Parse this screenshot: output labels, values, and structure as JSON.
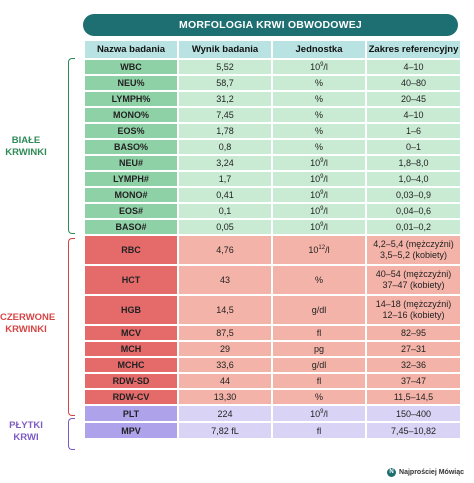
{
  "title": "MORFOLOGIA KRWI OBWODOWEJ",
  "headers": [
    "Nazwa badania",
    "Wynik badania",
    "Jednostka",
    "Zakres referencyjny"
  ],
  "groups": {
    "white": [
      "BIAŁE",
      "KRWINKI"
    ],
    "red": [
      "CZERWONE",
      "KRWINKI"
    ],
    "platelets": [
      "PŁYTKI",
      "KRWI"
    ]
  },
  "white_rows": [
    {
      "name": "WBC",
      "value": "5,52",
      "unit_base": "10",
      "unit_exp": "9",
      "unit_suffix": "/l",
      "range": "4–10"
    },
    {
      "name": "NEU%",
      "value": "58,7",
      "unit": "%",
      "range": "40–80"
    },
    {
      "name": "LYMPH%",
      "value": "31,2",
      "unit": "%",
      "range": "20–45"
    },
    {
      "name": "MONO%",
      "value": "7,45",
      "unit": "%",
      "range": "4–10"
    },
    {
      "name": "EOS%",
      "value": "1,78",
      "unit": "%",
      "range": "1–6"
    },
    {
      "name": "BASO%",
      "value": "0,8",
      "unit": "%",
      "range": "0–1"
    },
    {
      "name": "NEU#",
      "value": "3,24",
      "unit_base": "10",
      "unit_exp": "9",
      "unit_suffix": "/l",
      "range": "1,8–8,0"
    },
    {
      "name": "LYMPH#",
      "value": "1,7",
      "unit_base": "10",
      "unit_exp": "9",
      "unit_suffix": "/l",
      "range": "1,0–4,0"
    },
    {
      "name": "MONO#",
      "value": "0,41",
      "unit_base": "10",
      "unit_exp": "9",
      "unit_suffix": "/l",
      "range": "0,03–0,9"
    },
    {
      "name": "EOS#",
      "value": "0,1",
      "unit_base": "10",
      "unit_exp": "9",
      "unit_suffix": "/l",
      "range": "0,04–0,6"
    },
    {
      "name": "BASO#",
      "value": "0,05",
      "unit_base": "10",
      "unit_exp": "9",
      "unit_suffix": "/l",
      "range": "0,01–0,2"
    }
  ],
  "red_rows": {
    "rbc": {
      "name": "RBC",
      "value": "4,76",
      "unit_base": "10",
      "unit_exp": "12",
      "unit_suffix": "/l",
      "range1": "4,2–5,4 (mężczyźni)",
      "range2": "3,5–5,2 (kobiety)"
    },
    "hct": {
      "name": "HCT",
      "value": "43",
      "unit": "%",
      "range1": "40–54 (mężczyźni)",
      "range2": "37–47 (kobiety)"
    },
    "hgb": {
      "name": "HGB",
      "value": "14,5",
      "unit": "g/dl",
      "range1": "14–18 (mężczyźni)",
      "range2": "12–16 (kobiety)"
    },
    "mcv": {
      "name": "MCV",
      "value": "87,5",
      "unit": "fl",
      "range": "82–95"
    },
    "mch": {
      "name": "MCH",
      "value": "29",
      "unit": "pg",
      "range": "27–31"
    },
    "mchc": {
      "name": "MCHC",
      "value": "33,6",
      "unit": "g/dl",
      "range": "32–36"
    },
    "rdwsd": {
      "name": "RDW-SD",
      "value": "44",
      "unit": "fl",
      "range": "37–47"
    },
    "rdwcv": {
      "name": "RDW-CV",
      "value": "13,30",
      "unit": "%",
      "range": "11,5–14,5"
    }
  },
  "platelet_rows": {
    "plt": {
      "name": "PLT",
      "value": "224",
      "unit_base": "10",
      "unit_exp": "9",
      "unit_suffix": "/l",
      "range": "150–400"
    },
    "mpv": {
      "name": "MPV",
      "value": "7,82 fL",
      "unit": "fl",
      "range": "7,45–10,82"
    }
  },
  "brand": "Najprościej Mówiąc"
}
